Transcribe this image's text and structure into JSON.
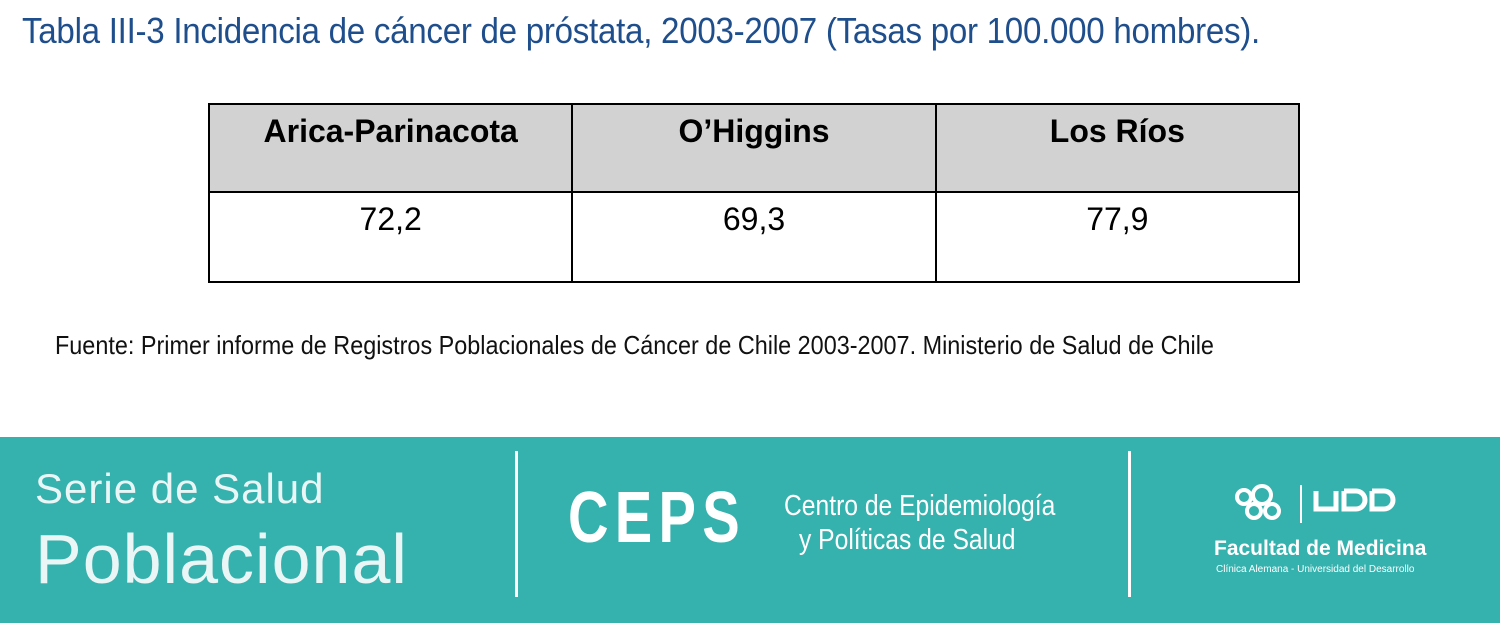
{
  "title": "Tabla III-3 Incidencia de cáncer de próstata, 2003-2007 (Tasas por 100.000 hombres).",
  "table": {
    "headers": [
      "Arica-Parinacota",
      "O’Higgins",
      "Los Ríos"
    ],
    "values": [
      "72,2",
      "69,3",
      "77,9"
    ]
  },
  "source": "Fuente: Primer informe de Registros Poblacionales de Cáncer de Chile 2003-2007. Ministerio de Salud de Chile",
  "footer": {
    "serie_line1": "Serie de Salud",
    "serie_line2": "Poblacional",
    "ceps_mark": "CEPS",
    "ceps_line1": "Centro de Epidemiología",
    "ceps_line2": "y Políticas de Salud",
    "udd_wordmark": "UDD",
    "udd_faculty": "Facultad de Medicina",
    "udd_sub": "Clínica Alemana - Universidad del Desarrollo"
  },
  "colors": {
    "title": "#1f4e8c",
    "header_bg": "#d2d2d2",
    "footer_bg": "#36b2ae"
  }
}
